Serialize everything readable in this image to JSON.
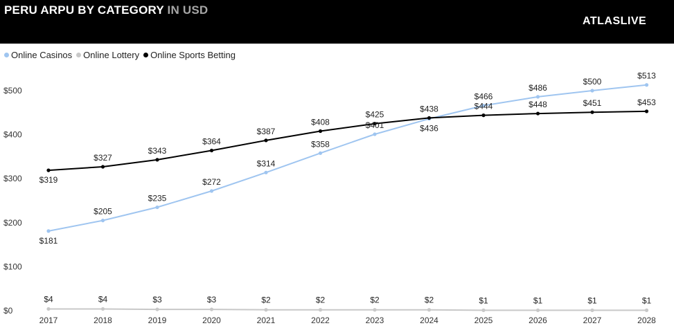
{
  "header": {
    "title_main": "PERU ARPU BY CATEGORY",
    "title_accent": "IN USD",
    "logo_text": "ATLASLIVE",
    "background": "#000000"
  },
  "chart_data": {
    "type": "line",
    "title": "PERU ARPU BY CATEGORY IN USD",
    "xlabel": "",
    "ylabel": "",
    "x": [
      "2017",
      "2018",
      "2019",
      "2020",
      "2021",
      "2022",
      "2023",
      "2024",
      "2025",
      "2026",
      "2027",
      "2028"
    ],
    "ylim": [
      0,
      500
    ],
    "yticks": [
      0,
      100,
      200,
      300,
      400,
      500
    ],
    "ytick_labels": [
      "$0",
      "$100",
      "$200",
      "$300",
      "$400",
      "$500"
    ],
    "grid": false,
    "legend_position": "top-left",
    "series": [
      {
        "name": "Online Casinos",
        "color": "#9fc5f0",
        "values": [
          181,
          205,
          235,
          272,
          314,
          358,
          401,
          436,
          466,
          486,
          500,
          513
        ],
        "labels": [
          "$181",
          "$205",
          "$235",
          "$272",
          "$314",
          "$358",
          "$401",
          "$436",
          "$466",
          "$486",
          "$500",
          "$513"
        ]
      },
      {
        "name": "Online Lottery",
        "color": "#c8c8c8",
        "values": [
          4,
          4,
          3,
          3,
          2,
          2,
          2,
          2,
          1,
          1,
          1,
          1
        ],
        "labels": [
          "$4",
          "$4",
          "$3",
          "$3",
          "$2",
          "$2",
          "$2",
          "$2",
          "$1",
          "$1",
          "$1",
          "$1"
        ]
      },
      {
        "name": "Online Sports Betting",
        "color": "#000000",
        "values": [
          319,
          327,
          343,
          364,
          387,
          408,
          425,
          438,
          444,
          448,
          451,
          453
        ],
        "labels": [
          "$319",
          "$327",
          "$343",
          "$364",
          "$387",
          "$408",
          "$425",
          "$438",
          "$444",
          "$448",
          "$451",
          "$453"
        ]
      }
    ]
  }
}
